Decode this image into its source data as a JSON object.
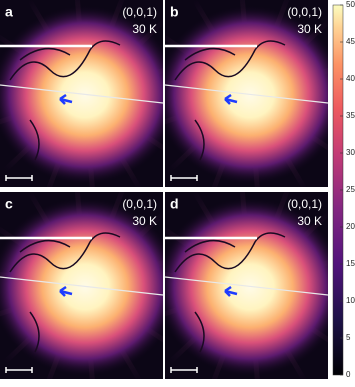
{
  "panels": [
    {
      "label": "a",
      "direction": "(0,0,1)",
      "temperature": "30 K"
    },
    {
      "label": "b",
      "direction": "(0,0,1)",
      "temperature": "30 K"
    },
    {
      "label": "c",
      "direction": "(0,0,1)",
      "temperature": "30 K"
    },
    {
      "label": "d",
      "direction": "(0,0,1)",
      "temperature": "30 K"
    }
  ],
  "colorbar": {
    "lim": [
      0,
      50
    ],
    "ticks": [
      0,
      5,
      10,
      15,
      20,
      25,
      30,
      35,
      40,
      45,
      50
    ]
  }
}
